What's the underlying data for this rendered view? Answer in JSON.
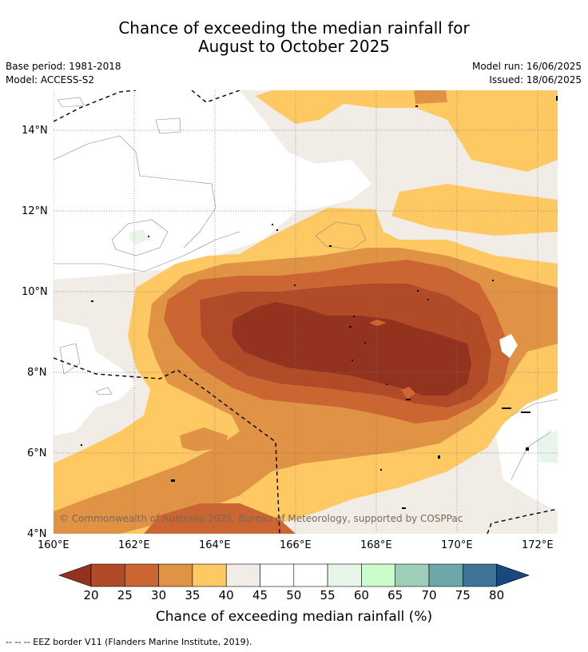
{
  "title_line1": "Chance of exceeding the median rainfall for",
  "title_line2": "August to October 2025",
  "base_period": "Base period: 1981-2018",
  "model": "Model: ACCESS-S2",
  "model_run": "Model run: 16/06/2025",
  "issued": "Issued: 18/06/2025",
  "copyright": "© Commonwealth of Australia 2025, Bureau of Meteorology, supported by COSPPac",
  "lat_ticks": [
    "14°N",
    "12°N",
    "10°N",
    "8°N",
    "6°N",
    "4°N"
  ],
  "lon_ticks": [
    "160°E",
    "162°E",
    "164°E",
    "166°E",
    "168°E",
    "170°E",
    "172°E"
  ],
  "colorbar": {
    "title": "Chance of exceeding median rainfall (%)",
    "labels": [
      "20",
      "25",
      "30",
      "35",
      "40",
      "45",
      "50",
      "55",
      "60",
      "65",
      "70",
      "75",
      "80"
    ],
    "colors": [
      "#93321e",
      "#b04a27",
      "#cb6531",
      "#e09245",
      "#fec862",
      "#f1ece6",
      "#ffffff",
      "#ffffff",
      "#e8f6ea",
      "#cbfdcc",
      "#9fcfb9",
      "#6fa6a7",
      "#3f7496",
      "#17497e"
    ]
  },
  "footer": "--  --  -- EEZ border V11 (Flanders Marine Institute, 2019)."
}
